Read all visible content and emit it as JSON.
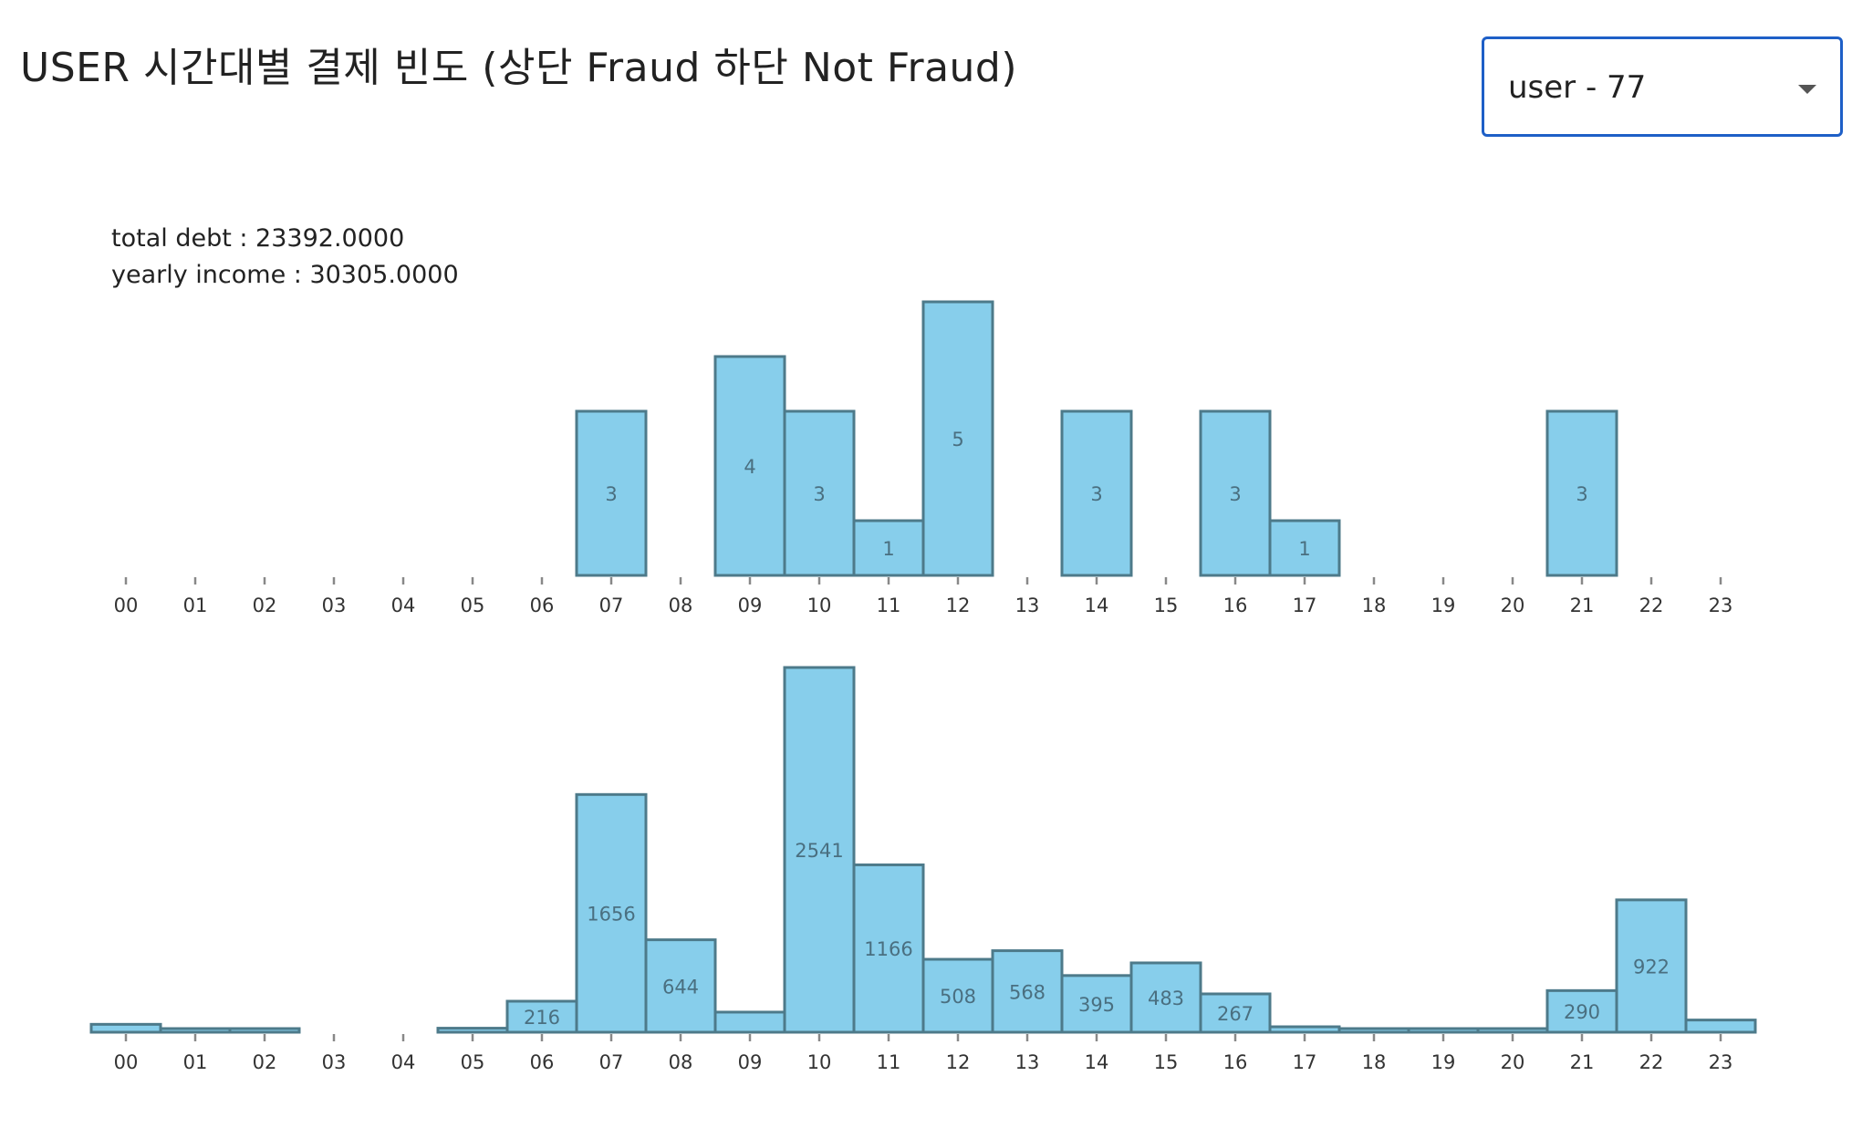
{
  "header": {
    "title": "USER 시간대별 결제 빈도 (상단 Fraud 하단 Not Fraud)"
  },
  "user_select": {
    "value": "user - 77"
  },
  "info": {
    "total_debt": "total debt : 23392.0000",
    "yearly_income": "yearly income : 30305.0000"
  },
  "colors": {
    "bar_fill": "#87ceeb",
    "bar_stroke": "#4d7a8a",
    "select_border": "#1e5fc7"
  },
  "chart_data": [
    {
      "type": "bar",
      "categories": [
        "00",
        "01",
        "02",
        "03",
        "04",
        "05",
        "06",
        "07",
        "08",
        "09",
        "10",
        "11",
        "12",
        "13",
        "14",
        "15",
        "16",
        "17",
        "18",
        "19",
        "20",
        "21",
        "22",
        "23"
      ],
      "values": [
        0,
        0,
        0,
        0,
        0,
        0,
        0,
        3,
        0,
        4,
        3,
        1,
        5,
        0,
        3,
        0,
        3,
        1,
        0,
        0,
        0,
        3,
        0,
        0
      ],
      "data_labels": [
        "",
        "",
        "",
        "",
        "",
        "",
        "",
        "3",
        "",
        "4",
        "3",
        "1",
        "5",
        "",
        "3",
        "",
        "3",
        "1",
        "",
        "",
        "",
        "3",
        "",
        ""
      ],
      "ylim": [
        0,
        5
      ]
    },
    {
      "type": "bar",
      "categories": [
        "00",
        "01",
        "02",
        "03",
        "04",
        "05",
        "06",
        "07",
        "08",
        "09",
        "10",
        "11",
        "12",
        "13",
        "14",
        "15",
        "16",
        "17",
        "18",
        "19",
        "20",
        "21",
        "22",
        "23"
      ],
      "values": [
        55,
        12,
        12,
        0,
        0,
        28,
        216,
        1656,
        644,
        140,
        2541,
        1166,
        508,
        568,
        395,
        483,
        267,
        38,
        10,
        22,
        25,
        290,
        922,
        85
      ],
      "data_labels": [
        "",
        "",
        "",
        "",
        "",
        "",
        "216",
        "1656",
        "644",
        "",
        "2541",
        "1166",
        "508",
        "568",
        "395",
        "483",
        "267",
        "",
        "",
        "",
        "",
        "290",
        "922",
        ""
      ],
      "ylim": [
        0,
        2541
      ]
    }
  ]
}
